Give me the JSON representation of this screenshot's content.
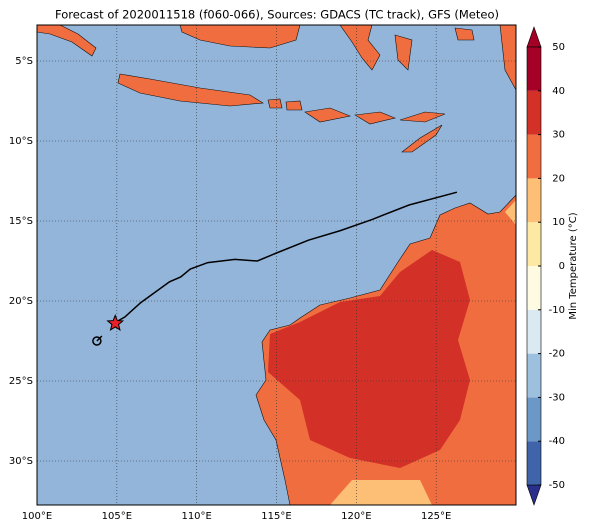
{
  "title": "Forecast of 2020011518 (f060-066), Sources: GDACS (TC track), GFS (Meteo)",
  "map": {
    "lonlim": [
      100,
      130
    ],
    "latlim": [
      -32.75,
      -2.75
    ],
    "lon_ticks": [
      {
        "value": 100,
        "label": "100°E"
      },
      {
        "value": 105,
        "label": "105°E"
      },
      {
        "value": 110,
        "label": "110°E"
      },
      {
        "value": 115,
        "label": "115°E"
      },
      {
        "value": 120,
        "label": "120°E"
      },
      {
        "value": 125,
        "label": "125°E"
      }
    ],
    "lat_ticks": [
      {
        "value": -5,
        "label": "5°S"
      },
      {
        "value": -10,
        "label": "10°S"
      },
      {
        "value": -15,
        "label": "15°S"
      },
      {
        "value": -20,
        "label": "20°S"
      },
      {
        "value": -25,
        "label": "25°S"
      },
      {
        "value": -30,
        "label": "30°S"
      }
    ]
  },
  "track": {
    "lon": [
      104.8,
      105.5,
      106.5,
      108.3,
      109,
      109.6,
      110.7,
      112.4,
      113.8,
      115,
      117,
      119,
      121,
      123.3,
      126.3
    ],
    "lat": [
      -21.4,
      -21.0,
      -20.1,
      -18.8,
      -18.5,
      -18,
      -17.6,
      -17.4,
      -17.5,
      -17.0,
      -16.2,
      -15.6,
      -14.9,
      -14.0,
      -13.2
    ]
  },
  "current_position": {
    "lon": 104.9,
    "lat": -21.4
  },
  "origin_position": {
    "lon": 103.75,
    "lat": -22.5
  },
  "colorbar": {
    "label": "Min Temperature (°C)",
    "ticks": [
      -50,
      -40,
      -30,
      -20,
      -10,
      0,
      10,
      20,
      30,
      40,
      50
    ],
    "colors": [
      "#2b2f8c",
      "#3f64aa",
      "#6c98c8",
      "#9dc0df",
      "#dbeaf2",
      "#fffbe2",
      "#fde9a4",
      "#fdbe76",
      "#f06d3f",
      "#d33027",
      "#a50026"
    ]
  }
}
